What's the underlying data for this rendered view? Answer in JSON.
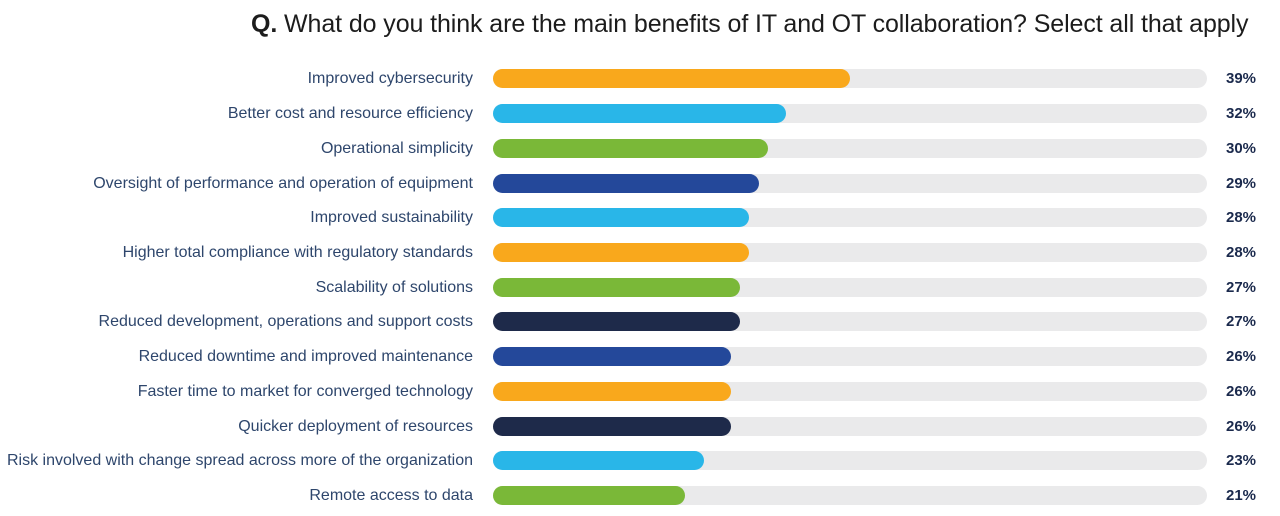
{
  "title": {
    "prefix": "Q.",
    "text": " What do you think are the main benefits of IT and OT collaboration? Select all that apply"
  },
  "chart_data": {
    "type": "bar",
    "orientation": "horizontal",
    "title": "Q. What do you think are the main benefits of IT and OT collaboration? Select all that apply",
    "xlabel": "",
    "ylabel": "",
    "unit": "%",
    "xlim": [
      0,
      78
    ],
    "grid": false,
    "legend": false,
    "track_color": "#eaeaeb",
    "categories": [
      "Improved cybersecurity",
      "Better cost and resource efficiency",
      "Operational simplicity",
      "Oversight of performance and operation of equipment",
      "Improved sustainability",
      "Higher total compliance with regulatory standards",
      "Scalability of solutions",
      "Reduced development, operations and support costs",
      "Reduced downtime and improved maintenance",
      "Faster time to market for converged technology",
      "Quicker deployment of resources",
      "Risk involved with change spread across more of the organization",
      "Remote access to data"
    ],
    "values": [
      39,
      32,
      30,
      29,
      28,
      28,
      27,
      27,
      26,
      26,
      26,
      23,
      21
    ],
    "value_labels": [
      "39%",
      "32%",
      "30%",
      "29%",
      "28%",
      "28%",
      "27%",
      "27%",
      "26%",
      "26%",
      "26%",
      "23%",
      "21%"
    ],
    "bar_colors": [
      "#f9a81c",
      "#29b6e8",
      "#7ab838",
      "#24489a",
      "#29b6e8",
      "#f9a81c",
      "#7ab838",
      "#1e2a4a",
      "#24489a",
      "#f9a81c",
      "#1e2a4a",
      "#29b6e8",
      "#7ab838"
    ]
  },
  "text_colors": {
    "title": "#1c1c1c",
    "category_label": "#2e466c",
    "value_label": "#1b2a4d"
  }
}
